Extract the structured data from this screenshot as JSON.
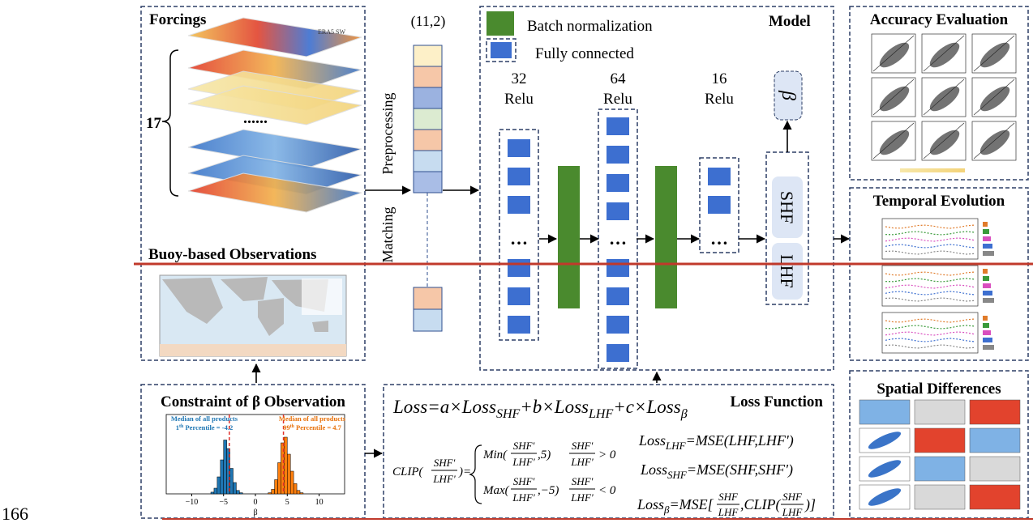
{
  "forcings": {
    "title": "Forcings",
    "count": "17",
    "dots": "......",
    "map_label": "ERA5 SW"
  },
  "buoy": {
    "title": "Buoy-based Observations"
  },
  "input": {
    "shape": "(11,2)",
    "preprocessing": "Preprocessing",
    "matching": "Matching"
  },
  "model": {
    "title": "Model",
    "legend": [
      "Batch normalization",
      "Fully connected"
    ],
    "layers": [
      {
        "units": "32",
        "activation": "Relu"
      },
      {
        "units": "64",
        "activation": "Relu"
      },
      {
        "units": "16",
        "activation": "Relu"
      }
    ],
    "ellipsis": "…",
    "outputs": [
      "SHF",
      "LHF"
    ],
    "beta": "β"
  },
  "evaluation": [
    "Accuracy Evaluation",
    "Temporal Evolution",
    "Spatial Differences"
  ],
  "constraint": {
    "title": "Constraint of β Observation",
    "annotations": [
      {
        "line1": "Median of all products",
        "line2": [
          "1",
          "th",
          " Percentile = -4.2"
        ]
      },
      {
        "line1": "Median of all products",
        "line2": [
          "99",
          "th",
          " Percentile = 4.7"
        ]
      }
    ],
    "histogram": {
      "type": "histogram",
      "xlabel": "β",
      "xlim": [
        -14,
        14
      ],
      "xticks": [
        {
          "value": -10,
          "label": "−10"
        },
        {
          "value": -5,
          "label": "−5"
        },
        0,
        5,
        10
      ],
      "ylim": [
        0,
        100
      ],
      "medians": [
        -4.1,
        4.4
      ],
      "median_color": "#e0302a",
      "series": [
        {
          "color": "#1f77b4",
          "bins": [
            -7,
            -6.5,
            -6,
            -5.5,
            -5,
            -4.5,
            -4,
            -3.5,
            -3,
            -2.5,
            -2
          ],
          "counts": [
            3,
            10,
            30,
            60,
            95,
            80,
            45,
            20,
            6,
            2
          ]
        },
        {
          "color": "#ff7f0e",
          "bins": [
            2,
            2.5,
            3,
            3.5,
            4,
            4.5,
            5,
            5.5,
            6,
            6.5,
            7,
            7.5
          ],
          "counts": [
            2,
            8,
            25,
            55,
            90,
            100,
            70,
            40,
            18,
            6,
            2
          ]
        }
      ]
    }
  },
  "loss": {
    "title": "Loss Function",
    "total": [
      "Loss=a×Loss",
      "SHF",
      "+b×Loss",
      "LHF",
      "+c×Loss",
      "β"
    ],
    "clip": {
      "lhs": "CLIP(",
      "num": "SHF'",
      "den": "LHF'",
      "eq": ")=",
      "min": "Min(",
      "min_end": ",5)",
      "max": "Max(",
      "max_end": ",−5)",
      "gt": "> 0",
      "lt": "< 0"
    },
    "lhf": [
      "Loss",
      "LHF",
      "=MSE(LHF,LHF')"
    ],
    "shf": [
      "Loss",
      "SHF",
      "=MSE(SHF,SHF')"
    ],
    "beta": [
      "Loss",
      "β",
      "=MSE[",
      ",CLIP(",
      ")]"
    ],
    "frac": [
      "SHF",
      "LHF"
    ]
  },
  "page_number": "166"
}
